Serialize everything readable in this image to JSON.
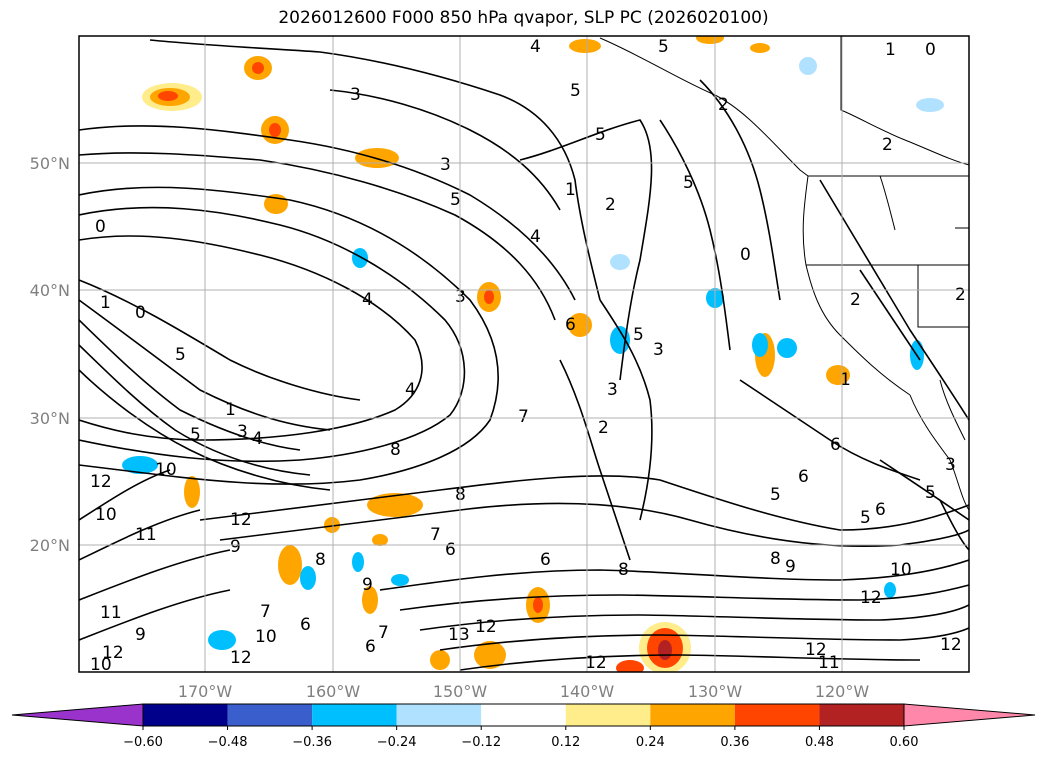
{
  "title": "2026012600 F000 850 hPa qvapor, SLP PC (2026020100)",
  "map": {
    "lat_labels": [
      "50°N",
      "40°N",
      "30°N",
      "20°N"
    ],
    "lon_labels": [
      "170°W",
      "160°W",
      "150°W",
      "140°W",
      "130°W",
      "120°W"
    ]
  },
  "colorbar": {
    "ticks": [
      "−0.60",
      "−0.48",
      "−0.36",
      "−0.24",
      "−0.12",
      "0.12",
      "0.24",
      "0.36",
      "0.48",
      "0.60"
    ],
    "colors": [
      "#9933cc",
      "#00008b",
      "#3a5fcd",
      "#00bfff",
      "#b0e2ff",
      "#ffffff",
      "#ffec8b",
      "#ffa500",
      "#ff4500",
      "#b22222",
      "#ff88aa"
    ]
  }
}
